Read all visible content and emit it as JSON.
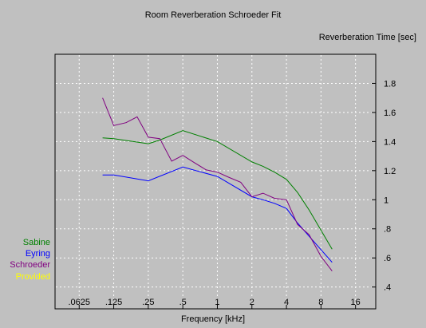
{
  "chart_data": {
    "type": "line",
    "title": "Room Reverberation Schroeder Fit",
    "xlabel": "Frequency [kHz]",
    "ylabel": "Reverberation Time [sec]",
    "x_scale": "log2",
    "xlim": [
      0.0385,
      24
    ],
    "ylim": [
      0.25,
      2.0
    ],
    "x_ticks": [
      0.0625,
      0.125,
      0.25,
      0.5,
      1,
      2,
      4,
      8,
      16
    ],
    "x_tick_labels": [
      ".0625",
      ".125",
      ".25",
      ".5",
      "1",
      "2",
      "4",
      "8",
      "16"
    ],
    "y_ticks": [
      0.4,
      0.6,
      0.8,
      1.0,
      1.2,
      1.4,
      1.6,
      1.8
    ],
    "y_tick_labels": [
      ".4",
      ".6",
      ".8",
      "1",
      "1.2",
      "1.4",
      "1.6",
      "1.8"
    ],
    "grid": true,
    "legend_position": "left-bottom",
    "series": [
      {
        "name": "Sabine",
        "color": "#008000",
        "x": [
          0.1,
          0.125,
          0.25,
          0.315,
          0.5,
          1,
          2,
          2.5,
          3.15,
          4,
          5,
          6.3,
          10
        ],
        "y": [
          1.425,
          1.42,
          1.385,
          1.41,
          1.475,
          1.4,
          1.26,
          1.23,
          1.19,
          1.14,
          1.05,
          0.93,
          0.66
        ]
      },
      {
        "name": "Eyring",
        "color": "#0000ff",
        "x": [
          0.1,
          0.125,
          0.25,
          0.5,
          1,
          2,
          2.5,
          3.15,
          4,
          5,
          6.3,
          10
        ],
        "y": [
          1.17,
          1.17,
          1.13,
          1.225,
          1.16,
          1.02,
          1.0,
          0.975,
          0.94,
          0.84,
          0.75,
          0.57
        ]
      },
      {
        "name": "Schroeder",
        "color": "#800080",
        "x": [
          0.1,
          0.125,
          0.16,
          0.2,
          0.25,
          0.315,
          0.4,
          0.5,
          0.63,
          0.8,
          1,
          1.25,
          1.6,
          2,
          2.5,
          3.15,
          4,
          5,
          6.3,
          8,
          10
        ],
        "y": [
          1.7,
          1.51,
          1.53,
          1.57,
          1.43,
          1.42,
          1.265,
          1.305,
          1.255,
          1.205,
          1.19,
          1.155,
          1.12,
          1.02,
          1.045,
          1.01,
          1.0,
          0.83,
          0.76,
          0.61,
          0.51
        ]
      },
      {
        "name": "Provided",
        "color": "#ffff00",
        "x": [],
        "y": []
      }
    ]
  }
}
